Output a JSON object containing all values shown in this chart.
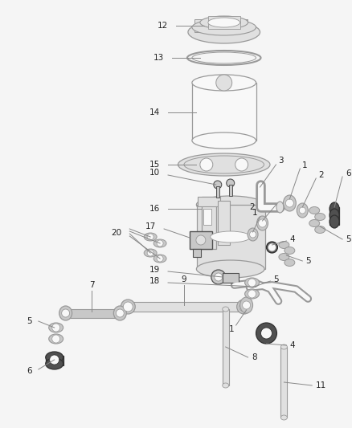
{
  "background_color": "#f0f0f0",
  "part_color": "#d8d8d8",
  "dark_part_color": "#404040",
  "med_gray": "#aaaaaa",
  "light_gray": "#e8e8e8",
  "label_color": "#666666",
  "line_color": "#888888",
  "figsize": [
    4.38,
    5.33
  ],
  "dpi": 100
}
